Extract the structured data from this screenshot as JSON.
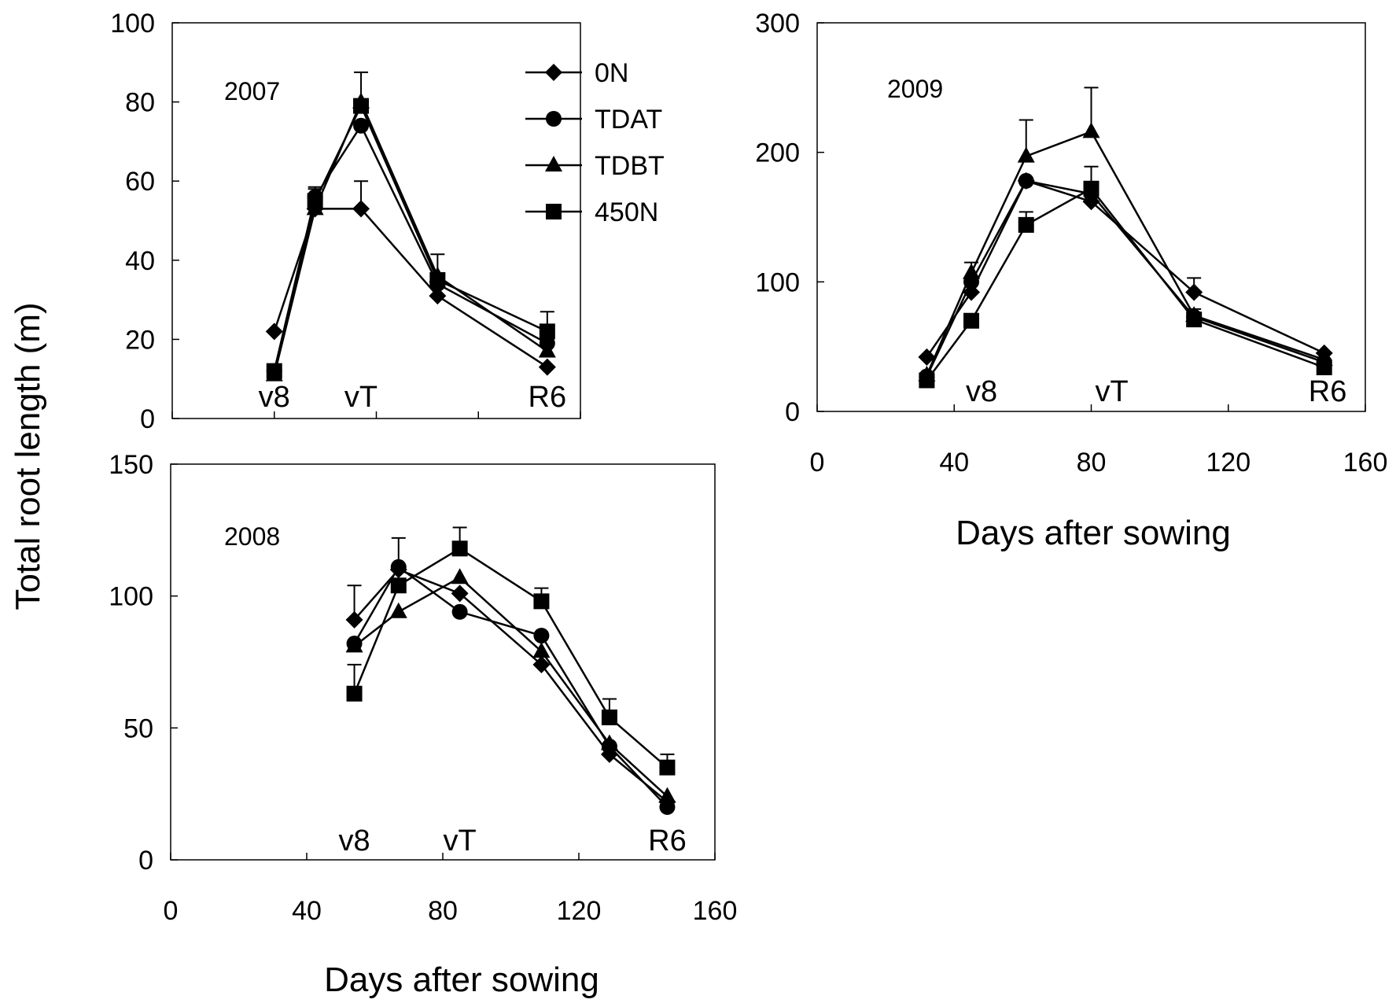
{
  "figure": {
    "ylabel": "Total root length (m)"
  },
  "legend": {
    "items": [
      {
        "name": "0N",
        "marker": "diamond"
      },
      {
        "name": "TDAT",
        "marker": "circle"
      },
      {
        "name": "TDBT",
        "marker": "triangle"
      },
      {
        "name": "450N",
        "marker": "square"
      }
    ]
  },
  "colors": {
    "line": "#000000",
    "background": "#ffffff"
  },
  "chart_data": [
    {
      "type": "line",
      "title": "2007",
      "xlabel": "",
      "xlim": [
        0,
        160
      ],
      "ylim": [
        0,
        100
      ],
      "xticks": [],
      "yticks": [
        0,
        20,
        40,
        60,
        80,
        100
      ],
      "stage_labels": [
        {
          "text": "v8",
          "x": 40
        },
        {
          "text": "vT",
          "x": 74
        },
        {
          "text": "R6",
          "x": 147
        }
      ],
      "series": [
        {
          "name": "0N",
          "marker": "diamond",
          "x": [
            40,
            56,
            74,
            104,
            147
          ],
          "y": [
            22,
            53,
            53,
            31,
            13
          ],
          "err": [
            0,
            0,
            7,
            0,
            0
          ]
        },
        {
          "name": "TDAT",
          "marker": "circle",
          "x": [
            40,
            56,
            74,
            104,
            147
          ],
          "y": [
            12,
            56,
            74,
            34,
            19
          ],
          "err": [
            1.5,
            2.5,
            0,
            0,
            0
          ]
        },
        {
          "name": "TDBT",
          "marker": "triangle",
          "x": [
            40,
            56,
            74,
            104,
            147
          ],
          "y": [
            11,
            53,
            80,
            36,
            17
          ],
          "err": [
            0,
            0,
            0,
            0,
            0
          ]
        },
        {
          "name": "450N",
          "marker": "square",
          "x": [
            40,
            56,
            74,
            104,
            147
          ],
          "y": [
            12,
            55,
            79,
            35,
            22
          ],
          "err": [
            0,
            3,
            8.5,
            6.5,
            5
          ]
        }
      ]
    },
    {
      "type": "line",
      "title": "2008",
      "xlabel": "Days after sowing",
      "xlim": [
        0,
        160
      ],
      "ylim": [
        0,
        150
      ],
      "xticks": [
        0,
        40,
        80,
        120,
        160
      ],
      "yticks": [
        0,
        50,
        100,
        150
      ],
      "stage_labels": [
        {
          "text": "v8",
          "x": 54
        },
        {
          "text": "vT",
          "x": 85
        },
        {
          "text": "R6",
          "x": 146
        }
      ],
      "series": [
        {
          "name": "0N",
          "marker": "diamond",
          "x": [
            54,
            67,
            85,
            109,
            129,
            146
          ],
          "y": [
            91,
            110,
            101,
            74,
            40,
            22
          ],
          "err": [
            13,
            0,
            0,
            0,
            0,
            0
          ]
        },
        {
          "name": "TDAT",
          "marker": "circle",
          "x": [
            54,
            67,
            85,
            109,
            129,
            146
          ],
          "y": [
            82,
            111,
            94,
            85,
            43,
            20
          ],
          "err": [
            0,
            0,
            0,
            0,
            0,
            0
          ]
        },
        {
          "name": "TDBT",
          "marker": "triangle",
          "x": [
            54,
            67,
            85,
            109,
            129,
            146
          ],
          "y": [
            81,
            94,
            107,
            79,
            44,
            24
          ],
          "err": [
            0,
            0,
            0,
            0,
            0,
            0
          ]
        },
        {
          "name": "450N",
          "marker": "square",
          "x": [
            54,
            67,
            85,
            109,
            129,
            146
          ],
          "y": [
            63,
            104,
            118,
            98,
            54,
            35
          ],
          "err": [
            11,
            18,
            8,
            5,
            7,
            5
          ]
        }
      ]
    },
    {
      "type": "line",
      "title": "2009",
      "xlabel": "Days after sowing",
      "xlim": [
        0,
        160
      ],
      "ylim": [
        0,
        300
      ],
      "xticks": [
        0,
        40,
        80,
        120,
        160
      ],
      "yticks": [
        0,
        100,
        200,
        300
      ],
      "stage_labels": [
        {
          "text": "v8",
          "x": 48
        },
        {
          "text": "vT",
          "x": 86
        },
        {
          "text": "R6",
          "x": 149
        }
      ],
      "series": [
        {
          "name": "0N",
          "marker": "diamond",
          "x": [
            32,
            45,
            61,
            80,
            110,
            148
          ],
          "y": [
            42,
            92,
            178,
            162,
            92,
            45
          ],
          "err": [
            0,
            0,
            0,
            0,
            11,
            0
          ]
        },
        {
          "name": "TDAT",
          "marker": "circle",
          "x": [
            32,
            45,
            61,
            80,
            110,
            148
          ],
          "y": [
            27,
            100,
            178,
            168,
            73,
            38
          ],
          "err": [
            0,
            0,
            0,
            0,
            0,
            0
          ]
        },
        {
          "name": "TDBT",
          "marker": "triangle",
          "x": [
            32,
            45,
            61,
            80,
            110,
            148
          ],
          "y": [
            28,
            107,
            197,
            216,
            74,
            40
          ],
          "err": [
            0,
            8,
            28,
            34,
            0,
            0
          ]
        },
        {
          "name": "450N",
          "marker": "square",
          "x": [
            32,
            45,
            61,
            80,
            110,
            148
          ],
          "y": [
            24,
            70,
            144,
            172,
            71,
            34
          ],
          "err": [
            0,
            0,
            10,
            17,
            8,
            0
          ]
        }
      ]
    }
  ]
}
